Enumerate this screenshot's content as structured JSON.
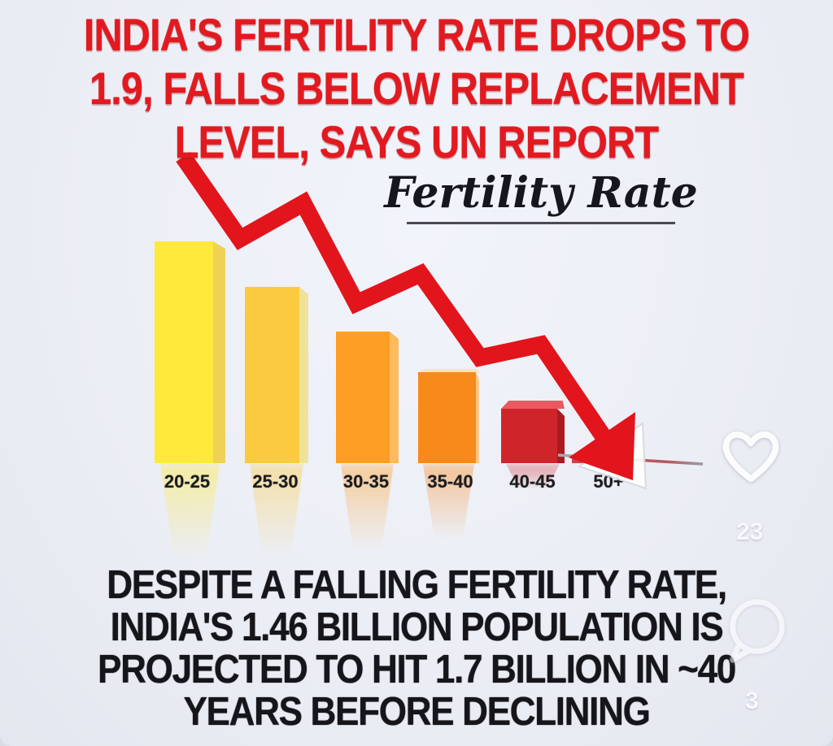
{
  "background_color": "#eceef5",
  "headline": {
    "color": "#e21a20",
    "lines": [
      "INDIA'S FERTILITY RATE DROPS TO",
      "1.9, FALLS BELOW REPLACEMENT",
      "LEVEL, SAYS UN REPORT"
    ]
  },
  "chart_data": {
    "type": "bar",
    "title": "Fertility Rate",
    "categories": [
      "20-25",
      "25-30",
      "30-35",
      "35-40",
      "40-45",
      "50+"
    ],
    "values_relative": [
      1.0,
      0.795,
      0.594,
      0.41,
      0.245,
      0.033
    ],
    "value_axis": "none (bar heights are relative; no numeric axis shown)",
    "bar_colors": [
      "#FFE93A",
      "#FCCA3E",
      "#FE9F24",
      "#F8891B",
      "#D0242B",
      "#C9474C"
    ],
    "bar_side_colors": [
      "#EFD255",
      "#EFE39B",
      "#FDBA5E",
      "#FDC787",
      "#A81B21",
      "#C9474C"
    ],
    "trend": "declining red zigzag arrow overlay pointing down-right",
    "arrow_color": "#e2151c",
    "xlabel": "",
    "ylabel": ""
  },
  "social": {
    "like_count": "23",
    "comment_count": "3"
  },
  "footer": {
    "color": "#16161a",
    "lines": [
      "DESPITE A FALLING FERTILITY RATE,",
      "INDIA'S 1.46 BILLION POPULATION IS",
      "PROJECTED TO HIT 1.7 BILLION IN ~40",
      "YEARS BEFORE DECLINING"
    ]
  }
}
